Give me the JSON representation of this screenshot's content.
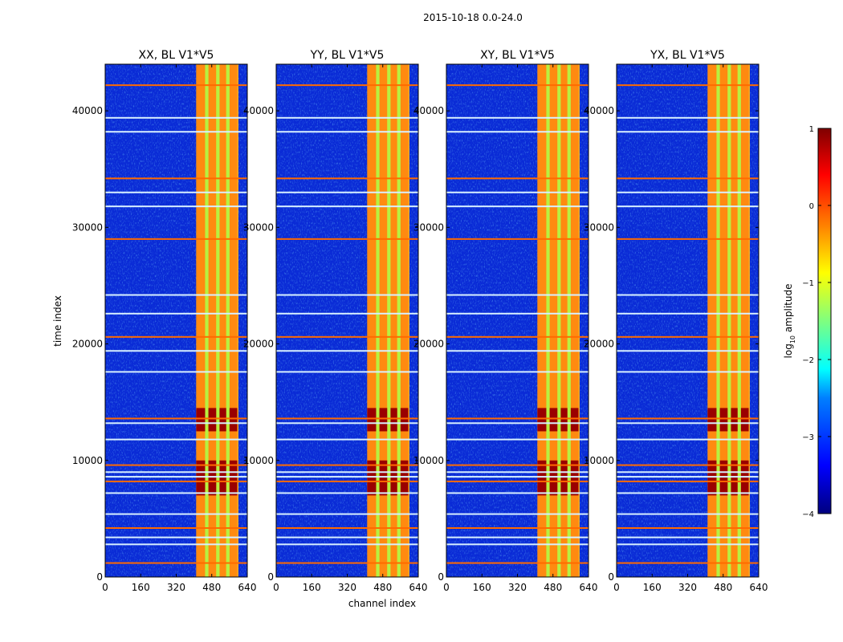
{
  "chart_data": {
    "type": "heatmap",
    "title": "2015-10-18 0.0-24.0",
    "xlabel": "channel index",
    "ylabel": "time index",
    "xlim": [
      0,
      640
    ],
    "ylim": [
      0,
      44000
    ],
    "xticks": [
      0,
      160,
      320,
      480,
      640
    ],
    "yticks": [
      0,
      10000,
      20000,
      30000,
      40000
    ],
    "panels": [
      {
        "title": "XX, BL V1*V5"
      },
      {
        "title": "YY, BL V1*V5"
      },
      {
        "title": "XY, BL V1*V5"
      },
      {
        "title": "YX, BL V1*V5"
      }
    ],
    "signal_band_channels": [
      410,
      600
    ],
    "strong_band_channels": [
      [
        410,
        450
      ],
      [
        465,
        500
      ],
      [
        515,
        545
      ],
      [
        560,
        595
      ]
    ],
    "rfi_rows_time_index": [
      1200,
      2800,
      3400,
      4200,
      5400,
      7200,
      8200,
      8600,
      9000,
      9600,
      11800,
      13200,
      13600,
      17600,
      19400,
      20600,
      22600,
      24200,
      29000,
      31800,
      33000,
      34200,
      38200,
      39400,
      42200
    ],
    "hot_regions": [
      {
        "time_range": [
          7000,
          10000
        ],
        "channel_range": [
          410,
          600
        ]
      },
      {
        "time_range": [
          12500,
          14500
        ],
        "channel_range": [
          410,
          600
        ]
      }
    ],
    "colorbar": {
      "label": "log",
      "label_sub": "10",
      "label_suffix": " amplitude",
      "range": [
        -4,
        1
      ],
      "ticks": [
        1,
        0,
        -1,
        -2,
        -3,
        -4
      ],
      "tick_labels": [
        "1",
        "0",
        "−1",
        "−2",
        "−3",
        "−4"
      ],
      "colormap": [
        "#00007f",
        "#0000ff",
        "#007fff",
        "#00ffff",
        "#7fff7f",
        "#ffff00",
        "#ff7f00",
        "#ff0000",
        "#7f0000"
      ]
    }
  }
}
